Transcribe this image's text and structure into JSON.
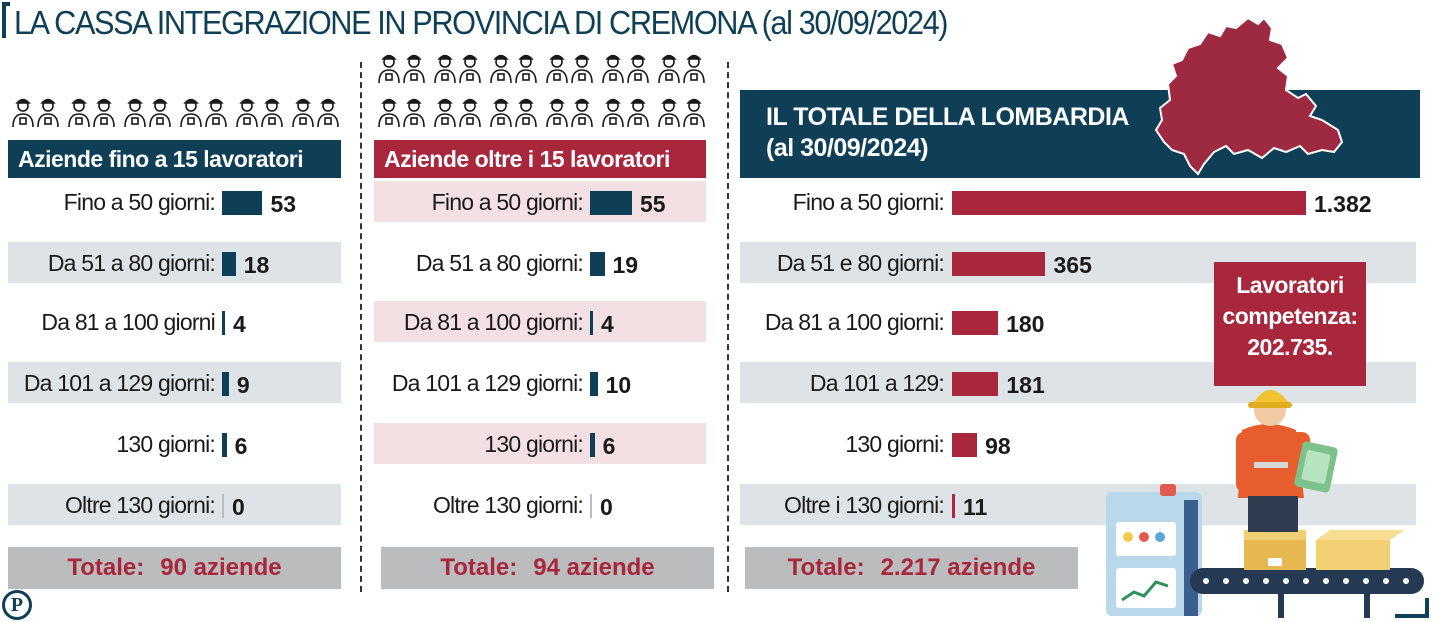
{
  "title": "LA CASSA INTEGRAZIONE IN PROVINCIA DI  CREMONA (al 30/09/2024)",
  "colors": {
    "navy": "#0e3f56",
    "crimson": "#a8273d",
    "grey_row": "#dde3e6",
    "pink_row": "#f2e0e2",
    "total_bg": "#babcbe"
  },
  "icons": [
    "worker-icon",
    "lombardy-map-icon",
    "factory-worker-illustration",
    "logo-p-icon"
  ],
  "chart_data": [
    {
      "type": "bar",
      "title": "Aziende fino a 15 lavoratori",
      "categories": [
        "Fino a 50 giorni:",
        "Da 51 a 80 giorni:",
        "Da 81 a 100 giorni",
        "Da 101 a 129 giorni:",
        "130 giorni:",
        "Oltre 130 giorni:"
      ],
      "values": [
        53,
        18,
        4,
        9,
        6,
        0
      ],
      "value_labels": [
        "53",
        "18",
        "4",
        "9",
        "6",
        "0"
      ],
      "total_label": "Totale:",
      "total_value": "90 aziende"
    },
    {
      "type": "bar",
      "title": "Aziende oltre i 15 lavoratori",
      "categories": [
        "Fino a 50 giorni:",
        "Da 51 a 80 giorni:",
        "Da 81 a 100 giorni:",
        "Da 101 a 129 giorni:",
        "130 giorni:",
        "Oltre 130 giorni:"
      ],
      "values": [
        55,
        19,
        4,
        10,
        6,
        0
      ],
      "value_labels": [
        "55",
        "19",
        "4",
        "10",
        "6",
        "0"
      ],
      "total_label": "Totale:",
      "total_value": "94 aziende"
    },
    {
      "type": "bar",
      "title": "IL TOTALE DELLA LOMBARDIA",
      "subtitle": "(al 30/09/2024)",
      "categories": [
        "Fino a 50 giorni:",
        "Da 51 e 80 giorni:",
        "Da 81 a 100 giorni:",
        "Da 101 a 129:",
        "130 giorni:",
        "Oltre i 130 giorni:"
      ],
      "values": [
        1382,
        365,
        180,
        181,
        98,
        11
      ],
      "value_labels": [
        "1.382",
        "365",
        "180",
        "181",
        "98",
        "11"
      ],
      "total_label": "Totale:",
      "total_value": "2.217 aziende"
    }
  ],
  "info_box": "Lavoratori\ncompetenza:\n202.735."
}
